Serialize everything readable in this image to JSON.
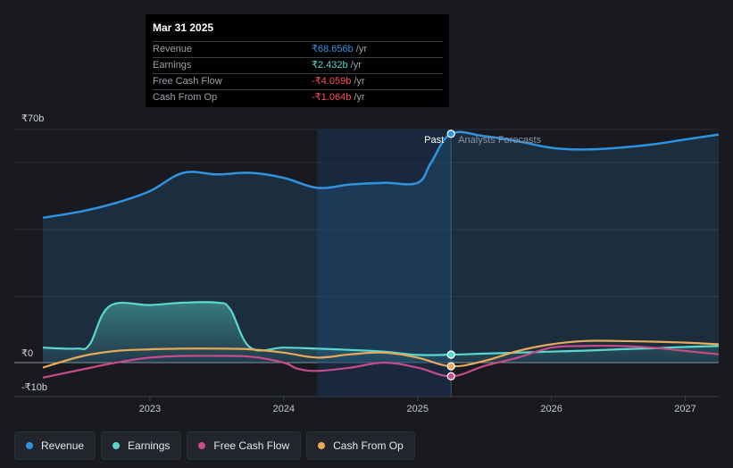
{
  "tooltip": {
    "date": "Mar 31 2025",
    "rows": [
      {
        "label": "Revenue",
        "value": "₹68.656b",
        "unit": "/yr",
        "color": "#2f93e0"
      },
      {
        "label": "Earnings",
        "value": "₹2.432b",
        "unit": "/yr",
        "color": "#5ad8cf"
      },
      {
        "label": "Free Cash Flow",
        "value": "-₹4.059b",
        "unit": "/yr",
        "color": "#ff4d5c"
      },
      {
        "label": "Cash From Op",
        "value": "-₹1.064b",
        "unit": "/yr",
        "color": "#ff4d5c"
      }
    ]
  },
  "legend": [
    {
      "label": "Revenue",
      "color": "#2f93e0"
    },
    {
      "label": "Earnings",
      "color": "#5ad8cf"
    },
    {
      "label": "Free Cash Flow",
      "color": "#c94b88"
    },
    {
      "label": "Cash From Op",
      "color": "#e8a95a"
    }
  ],
  "chart_data": {
    "type": "line",
    "title": "",
    "xlabel": "",
    "ylabel": "",
    "currency_ticks": [
      "₹70b",
      "₹0",
      "-₹10b"
    ],
    "y_tick_values": [
      70,
      0,
      -10
    ],
    "ylim": [
      -10,
      70
    ],
    "xlim": [
      2022.2,
      2027.25
    ],
    "x_ticks": [
      2023,
      2024,
      2025,
      2026,
      2027
    ],
    "x_tick_labels": [
      "2023",
      "2024",
      "2025",
      "2026",
      "2027"
    ],
    "past_label": "Past",
    "forecast_label": "Analysts Forecasts",
    "divider_x": 2025.25,
    "shade_start_x": 2024.25,
    "series": [
      {
        "name": "Revenue",
        "color": "#2f93e0",
        "fill": true,
        "x": [
          2022.2,
          2022.5,
          2022.75,
          2023.0,
          2023.25,
          2023.5,
          2023.75,
          2024.0,
          2024.25,
          2024.5,
          2024.75,
          2025.0,
          2025.1,
          2025.25,
          2025.5,
          2025.75,
          2026.0,
          2026.25,
          2026.5,
          2026.75,
          2027.0,
          2027.25
        ],
        "values": [
          43.5,
          45.5,
          48.0,
          51.5,
          57.0,
          56.5,
          57.0,
          55.5,
          52.5,
          53.5,
          54.0,
          54.0,
          60.0,
          68.7,
          68.0,
          66.5,
          64.5,
          64.0,
          64.5,
          65.5,
          67.0,
          68.5
        ]
      },
      {
        "name": "Earnings",
        "color": "#5ad8cf",
        "fill": true,
        "x": [
          2022.2,
          2022.45,
          2022.55,
          2022.7,
          2023.0,
          2023.25,
          2023.5,
          2023.6,
          2023.75,
          2024.0,
          2024.25,
          2024.5,
          2024.75,
          2025.0,
          2025.25,
          2025.5,
          2025.75,
          2026.0,
          2026.25,
          2026.5,
          2026.75,
          2027.0,
          2027.25
        ],
        "values": [
          4.5,
          4.2,
          5.5,
          17.0,
          17.3,
          18.0,
          18.0,
          16.0,
          4.5,
          4.5,
          4.2,
          3.8,
          3.3,
          2.3,
          2.4,
          2.7,
          3.0,
          3.3,
          3.6,
          4.0,
          4.3,
          4.7,
          5.0
        ]
      },
      {
        "name": "Free Cash Flow",
        "color": "#c94b88",
        "fill": false,
        "x": [
          2022.2,
          2022.5,
          2022.75,
          2023.0,
          2023.25,
          2023.5,
          2023.75,
          2024.0,
          2024.1,
          2024.25,
          2024.5,
          2024.75,
          2025.0,
          2025.25,
          2025.5,
          2025.75,
          2026.0,
          2026.25,
          2026.5,
          2026.75,
          2027.0,
          2027.25
        ],
        "values": [
          -4.5,
          -2.0,
          0.0,
          1.5,
          2.0,
          2.0,
          1.8,
          0.0,
          -1.8,
          -2.5,
          -1.5,
          0.0,
          -1.5,
          -4.1,
          -1.0,
          1.5,
          4.5,
          5.0,
          5.0,
          4.5,
          3.5,
          2.5
        ]
      },
      {
        "name": "Cash From Op",
        "color": "#e8a95a",
        "fill": false,
        "x": [
          2022.2,
          2022.5,
          2022.75,
          2023.0,
          2023.25,
          2023.5,
          2023.75,
          2024.0,
          2024.25,
          2024.5,
          2024.75,
          2025.0,
          2025.25,
          2025.5,
          2025.75,
          2026.0,
          2026.25,
          2026.5,
          2026.75,
          2027.0,
          2027.25
        ],
        "values": [
          -1.5,
          2.0,
          3.5,
          4.0,
          4.2,
          4.2,
          4.0,
          3.0,
          1.5,
          2.5,
          3.0,
          1.5,
          -1.1,
          0.5,
          3.5,
          5.5,
          6.5,
          6.5,
          6.3,
          6.0,
          5.5
        ]
      }
    ],
    "markers": [
      {
        "series": "Revenue",
        "x": 2025.25,
        "value": 68.7
      },
      {
        "series": "Earnings",
        "x": 2025.25,
        "value": 2.4
      },
      {
        "series": "Cash From Op",
        "x": 2025.25,
        "value": -1.1
      },
      {
        "series": "Free Cash Flow",
        "x": 2025.25,
        "value": -4.1
      }
    ]
  }
}
